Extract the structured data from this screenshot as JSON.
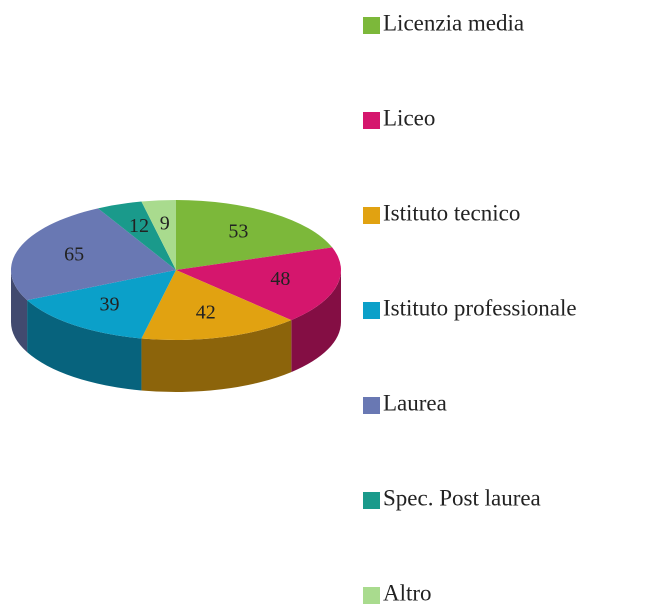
{
  "chart_data": {
    "type": "pie",
    "categories": [
      "Licenzia media",
      "Liceo",
      "Istituto tecnico",
      "Istituto professionale",
      "Laurea",
      "Spec. Post laurea",
      "Altro"
    ],
    "values": [
      53,
      48,
      42,
      39,
      65,
      12,
      9
    ],
    "colors": [
      "#7cb83a",
      "#d5166d",
      "#e1a211",
      "#0ba0c9",
      "#6978b3",
      "#1a9a8b",
      "#a9db8e"
    ],
    "legend": "right"
  }
}
